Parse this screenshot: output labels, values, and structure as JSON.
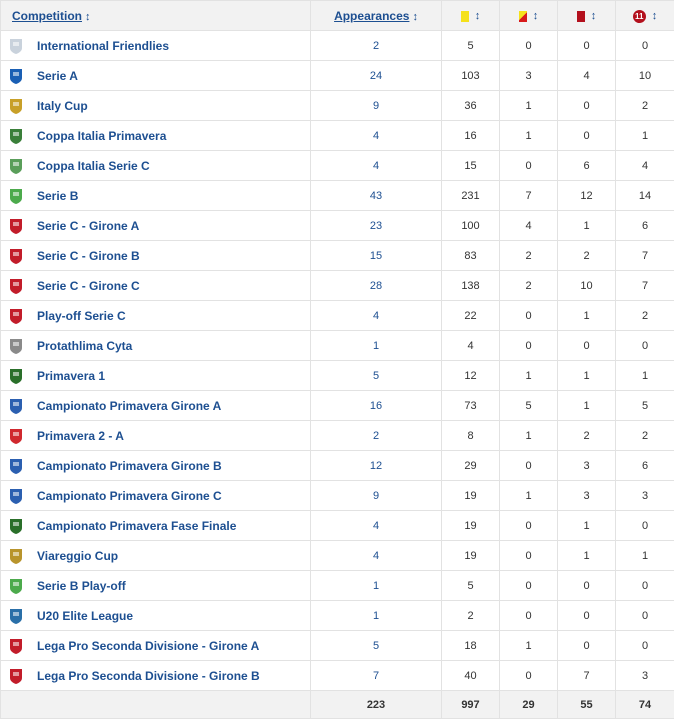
{
  "headers": {
    "competition": "Competition",
    "appearances": "Appearances",
    "sort_glyph": "↕",
    "own_goal_badge": "11"
  },
  "icons": {
    "yellow_card": "yellow-card-icon",
    "second_yellow": "yellow-red-card-icon",
    "red_card": "red-card-icon",
    "penalty": "penalty-goals-icon"
  },
  "rows": [
    {
      "competition": "International Friendlies",
      "appearances": "2",
      "yellow": "5",
      "yellow_red": "0",
      "red": "0",
      "goals": "0",
      "logo": "#c9d2dc"
    },
    {
      "competition": "Serie A",
      "appearances": "24",
      "yellow": "103",
      "yellow_red": "3",
      "red": "4",
      "goals": "10",
      "logo": "#1a5fb4"
    },
    {
      "competition": "Italy Cup",
      "appearances": "9",
      "yellow": "36",
      "yellow_red": "1",
      "red": "0",
      "goals": "2",
      "logo": "#c8a028"
    },
    {
      "competition": "Coppa Italia Primavera",
      "appearances": "4",
      "yellow": "16",
      "yellow_red": "1",
      "red": "0",
      "goals": "1",
      "logo": "#3a7f3a"
    },
    {
      "competition": "Coppa Italia Serie C",
      "appearances": "4",
      "yellow": "15",
      "yellow_red": "0",
      "red": "6",
      "goals": "4",
      "logo": "#5a9e5a"
    },
    {
      "competition": "Serie B",
      "appearances": "43",
      "yellow": "231",
      "yellow_red": "7",
      "red": "12",
      "goals": "14",
      "logo": "#4caa4c"
    },
    {
      "competition": "Serie C - Girone A",
      "appearances": "23",
      "yellow": "100",
      "yellow_red": "4",
      "red": "1",
      "goals": "6",
      "logo": "#c21c2a"
    },
    {
      "competition": "Serie C - Girone B",
      "appearances": "15",
      "yellow": "83",
      "yellow_red": "2",
      "red": "2",
      "goals": "7",
      "logo": "#c21c2a"
    },
    {
      "competition": "Serie C - Girone C",
      "appearances": "28",
      "yellow": "138",
      "yellow_red": "2",
      "red": "10",
      "goals": "7",
      "logo": "#c21c2a"
    },
    {
      "competition": "Play-off Serie C",
      "appearances": "4",
      "yellow": "22",
      "yellow_red": "0",
      "red": "1",
      "goals": "2",
      "logo": "#c21c2a"
    },
    {
      "competition": "Protathlima Cyta",
      "appearances": "1",
      "yellow": "4",
      "yellow_red": "0",
      "red": "0",
      "goals": "0",
      "logo": "#8a8a8a"
    },
    {
      "competition": "Primavera 1",
      "appearances": "5",
      "yellow": "12",
      "yellow_red": "1",
      "red": "1",
      "goals": "1",
      "logo": "#2a6f2a"
    },
    {
      "competition": "Campionato Primavera Girone A",
      "appearances": "16",
      "yellow": "73",
      "yellow_red": "5",
      "red": "1",
      "goals": "5",
      "logo": "#2b5fb0"
    },
    {
      "competition": "Primavera 2 - A",
      "appearances": "2",
      "yellow": "8",
      "yellow_red": "1",
      "red": "2",
      "goals": "2",
      "logo": "#d0282e"
    },
    {
      "competition": "Campionato Primavera Girone B",
      "appearances": "12",
      "yellow": "29",
      "yellow_red": "0",
      "red": "3",
      "goals": "6",
      "logo": "#2b5fb0"
    },
    {
      "competition": "Campionato Primavera Girone C",
      "appearances": "9",
      "yellow": "19",
      "yellow_red": "1",
      "red": "3",
      "goals": "3",
      "logo": "#2b5fb0"
    },
    {
      "competition": "Campionato Primavera Fase Finale",
      "appearances": "4",
      "yellow": "19",
      "yellow_red": "0",
      "red": "1",
      "goals": "0",
      "logo": "#2a6f2a"
    },
    {
      "competition": "Viareggio Cup",
      "appearances": "4",
      "yellow": "19",
      "yellow_red": "0",
      "red": "1",
      "goals": "1",
      "logo": "#b8942c"
    },
    {
      "competition": "Serie B Play-off",
      "appearances": "1",
      "yellow": "5",
      "yellow_red": "0",
      "red": "0",
      "goals": "0",
      "logo": "#4caa4c"
    },
    {
      "competition": "U20 Elite League",
      "appearances": "1",
      "yellow": "2",
      "yellow_red": "0",
      "red": "0",
      "goals": "0",
      "logo": "#2a6fa8"
    },
    {
      "competition": "Lega Pro Seconda Divisione - Girone A",
      "appearances": "5",
      "yellow": "18",
      "yellow_red": "1",
      "red": "0",
      "goals": "0",
      "logo": "#c21c2a"
    },
    {
      "competition": "Lega Pro Seconda Divisione - Girone B",
      "appearances": "7",
      "yellow": "40",
      "yellow_red": "0",
      "red": "7",
      "goals": "3",
      "logo": "#c21c2a"
    }
  ],
  "totals": {
    "appearances": "223",
    "yellow": "997",
    "yellow_red": "29",
    "red": "55",
    "goals": "74"
  }
}
